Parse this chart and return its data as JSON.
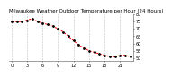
{
  "title": "Milwaukee Weather Outdoor Temperature per Hour (24 Hours)",
  "hours": [
    0,
    1,
    2,
    3,
    4,
    5,
    6,
    7,
    8,
    9,
    10,
    11,
    12,
    13,
    14,
    15,
    16,
    17,
    18,
    19,
    20,
    21,
    22,
    23
  ],
  "temps": [
    75,
    75,
    75,
    76,
    77,
    75,
    74,
    73,
    72,
    70,
    68,
    65,
    62,
    59,
    57,
    55,
    54,
    53,
    52,
    51,
    51,
    52,
    52,
    51
  ],
  "ylim": [
    48,
    80
  ],
  "yticks": [
    50,
    55,
    60,
    65,
    70,
    75,
    80
  ],
  "ytick_labels": [
    "50",
    "55",
    "60",
    "65",
    "70",
    "75",
    "80"
  ],
  "line_color": "#ff0000",
  "marker_color": "#000000",
  "bg_color": "#ffffff",
  "grid_color": "#888888",
  "title_fontsize": 4.0,
  "tick_fontsize": 3.5
}
